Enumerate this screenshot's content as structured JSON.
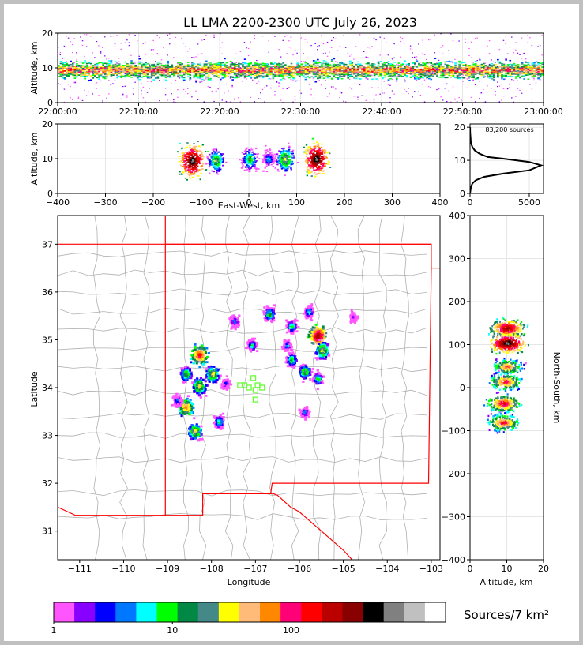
{
  "title": "LL LMA 2200-2300 UTC July 26, 2023",
  "source_count": "83,200 sources",
  "colorbar_label": "Sources/7 km²",
  "colors": {
    "scale": [
      "#ff55ff",
      "#8800ff",
      "#0000ff",
      "#0077ff",
      "#00ffff",
      "#00ff00",
      "#008844",
      "#448888",
      "#ffff00",
      "#ffbb77",
      "#ff8800",
      "#ff0077",
      "#ff0000",
      "#bb0000",
      "#880000",
      "#000000",
      "#808080",
      "#c0c0c0",
      "#ffffff"
    ],
    "state_lines": "#ff0000",
    "county_lines": "#b0b0b0",
    "stations": "#66ff33"
  },
  "chart_data": [
    {
      "panel": "altitude-time",
      "type": "heatmap",
      "xlabel": "",
      "ylabel": "Altitude, km",
      "xlim": [
        "22:00:00",
        "23:00:00"
      ],
      "ylim": [
        0,
        20
      ],
      "x_ticks": [
        "22:00:00",
        "22:10:00",
        "22:20:00",
        "22:30:00",
        "22:40:00",
        "22:50:00",
        "23:00:00"
      ],
      "y_ticks": [
        "0",
        "10",
        "20"
      ],
      "density_peak_altitude_km": 9.5
    },
    {
      "panel": "east-west-altitude",
      "type": "heatmap",
      "xlabel": "East-West, km",
      "ylabel": "Altitude, km",
      "xlim": [
        -400,
        400
      ],
      "ylim": [
        0,
        20
      ],
      "x_ticks": [
        "−400",
        "−300",
        "−200",
        "−100",
        "0",
        "100",
        "200",
        "300",
        "400"
      ],
      "y_ticks": [
        "0",
        "10",
        "20"
      ],
      "cells": [
        {
          "x": -120,
          "alt": 9.5,
          "weight": 1.0
        },
        {
          "x": -70,
          "alt": 9.5,
          "weight": 0.5
        },
        {
          "x": 0,
          "alt": 10,
          "weight": 0.45
        },
        {
          "x": 40,
          "alt": 10,
          "weight": 0.3
        },
        {
          "x": 75,
          "alt": 10,
          "weight": 0.55
        },
        {
          "x": 140,
          "alt": 10,
          "weight": 1.0
        }
      ]
    },
    {
      "panel": "altitude-histogram",
      "type": "line",
      "xlabel": "",
      "ylabel": "",
      "xlim": [
        0,
        6200
      ],
      "ylim": [
        0,
        21
      ],
      "x_ticks": [
        "0",
        "5000"
      ],
      "y_ticks": [
        "0",
        "10",
        "20"
      ],
      "x": [
        0,
        40,
        80,
        200,
        500,
        1200,
        2800,
        5000,
        6000,
        5000,
        2800,
        1500,
        800,
        400,
        200,
        100,
        60,
        40,
        20,
        10,
        5
      ],
      "y": [
        0,
        1,
        2,
        3,
        4,
        5,
        6,
        7,
        8.5,
        9.5,
        10.5,
        11,
        12,
        13,
        14,
        15,
        16,
        17,
        18,
        19,
        20
      ]
    },
    {
      "panel": "plan-view",
      "type": "heatmap",
      "xlabel": "Longitude",
      "ylabel": "Latitude",
      "xlim": [
        -111.5,
        -102.8
      ],
      "ylim": [
        30.4,
        37.6
      ],
      "x_ticks": [
        "−111",
        "−110",
        "−109",
        "−108",
        "−107",
        "−106",
        "−105",
        "−104",
        "−103"
      ],
      "y_ticks": [
        "31",
        "32",
        "33",
        "34",
        "35",
        "36",
        "37"
      ],
      "stations": [
        [
          -107.25,
          34.05
        ],
        [
          -107.15,
          34.0
        ],
        [
          -107.05,
          34.2
        ],
        [
          -106.95,
          34.05
        ],
        [
          -107.0,
          33.95
        ],
        [
          -106.85,
          34.0
        ],
        [
          -107.0,
          33.75
        ],
        [
          -107.35,
          34.05
        ]
      ],
      "cells": [
        {
          "lon": -108.3,
          "lat": 34.7,
          "weight": 0.8
        },
        {
          "lon": -108.0,
          "lat": 34.3,
          "weight": 0.6
        },
        {
          "lon": -108.6,
          "lat": 34.3,
          "weight": 0.5
        },
        {
          "lon": -108.3,
          "lat": 34.05,
          "weight": 0.6
        },
        {
          "lon": -108.6,
          "lat": 33.6,
          "weight": 0.7
        },
        {
          "lon": -108.4,
          "lat": 33.1,
          "weight": 0.6
        },
        {
          "lon": -107.85,
          "lat": 33.3,
          "weight": 0.4
        },
        {
          "lon": -108.8,
          "lat": 33.75,
          "weight": 0.3
        },
        {
          "lon": -107.7,
          "lat": 34.1,
          "weight": 0.25
        },
        {
          "lon": -107.1,
          "lat": 34.9,
          "weight": 0.35
        },
        {
          "lon": -107.5,
          "lat": 35.4,
          "weight": 0.3
        },
        {
          "lon": -106.7,
          "lat": 35.55,
          "weight": 0.45
        },
        {
          "lon": -106.2,
          "lat": 35.3,
          "weight": 0.4
        },
        {
          "lon": -105.8,
          "lat": 35.6,
          "weight": 0.35
        },
        {
          "lon": -105.6,
          "lat": 35.1,
          "weight": 0.9
        },
        {
          "lon": -105.5,
          "lat": 34.8,
          "weight": 0.6
        },
        {
          "lon": -105.9,
          "lat": 34.35,
          "weight": 0.5
        },
        {
          "lon": -105.6,
          "lat": 34.2,
          "weight": 0.4
        },
        {
          "lon": -106.2,
          "lat": 34.6,
          "weight": 0.45
        },
        {
          "lon": -105.9,
          "lat": 33.5,
          "weight": 0.3
        },
        {
          "lon": -104.8,
          "lat": 35.5,
          "weight": 0.15
        },
        {
          "lon": -106.3,
          "lat": 34.9,
          "weight": 0.3
        }
      ]
    },
    {
      "panel": "north-south-altitude",
      "type": "heatmap",
      "xlabel": "Altitude, km",
      "ylabel": "North-South, km",
      "xlim": [
        0,
        20
      ],
      "ylim": [
        -400,
        400
      ],
      "x_ticks": [
        "0",
        "10",
        "20"
      ],
      "y_ticks": [
        "−400",
        "−300",
        "−200",
        "−100",
        "0",
        "100",
        "200",
        "300",
        "400"
      ],
      "cells": [
        {
          "ns": 140,
          "alt": 10,
          "weight": 0.9
        },
        {
          "ns": 105,
          "alt": 10,
          "weight": 1.0
        },
        {
          "ns": 50,
          "alt": 10,
          "weight": 0.7
        },
        {
          "ns": 15,
          "alt": 9.5,
          "weight": 0.75
        },
        {
          "ns": -35,
          "alt": 9,
          "weight": 0.8
        },
        {
          "ns": -80,
          "alt": 9,
          "weight": 0.75
        }
      ]
    },
    {
      "panel": "colorbar",
      "type": "colorbar",
      "tick_labels": [
        "1",
        "10",
        "100"
      ]
    }
  ]
}
